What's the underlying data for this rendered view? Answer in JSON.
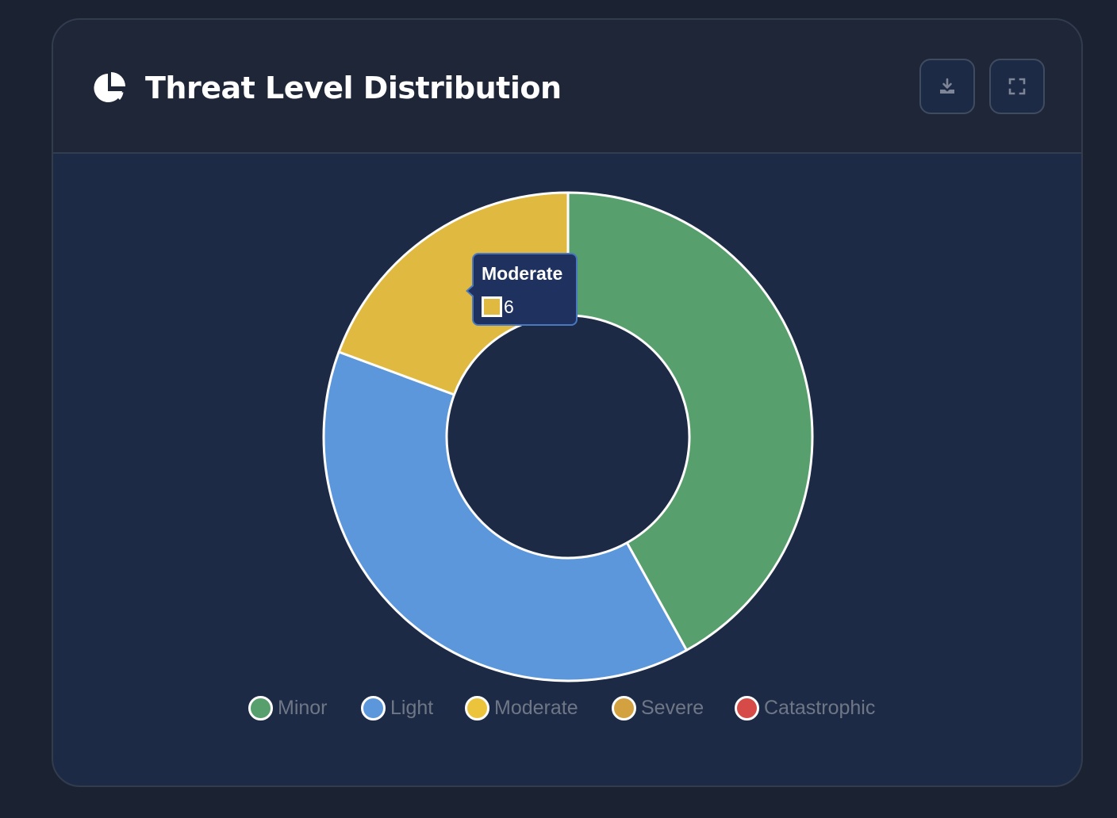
{
  "header": {
    "title": "Threat Level Distribution",
    "title_icon": "pie-chart-icon",
    "download_icon": "download-icon",
    "fullscreen_icon": "fullscreen-icon"
  },
  "chart_data": {
    "type": "pie",
    "variant": "doughnut",
    "categories": [
      "Minor",
      "Light",
      "Moderate",
      "Severe",
      "Catastrophic"
    ],
    "values": [
      13,
      12,
      6,
      0,
      0
    ],
    "colors": [
      "#589f6e",
      "#5c97db",
      "#e0b941",
      "#d3a13f",
      "#d64a48"
    ],
    "legend_colors": [
      "#589f6e",
      "#5c97db",
      "#ecc43c",
      "#d3a13f",
      "#d64a48"
    ],
    "legend_position": "bottom",
    "tooltip": {
      "label": "Moderate",
      "value": "6",
      "color": "#e0b941"
    }
  }
}
